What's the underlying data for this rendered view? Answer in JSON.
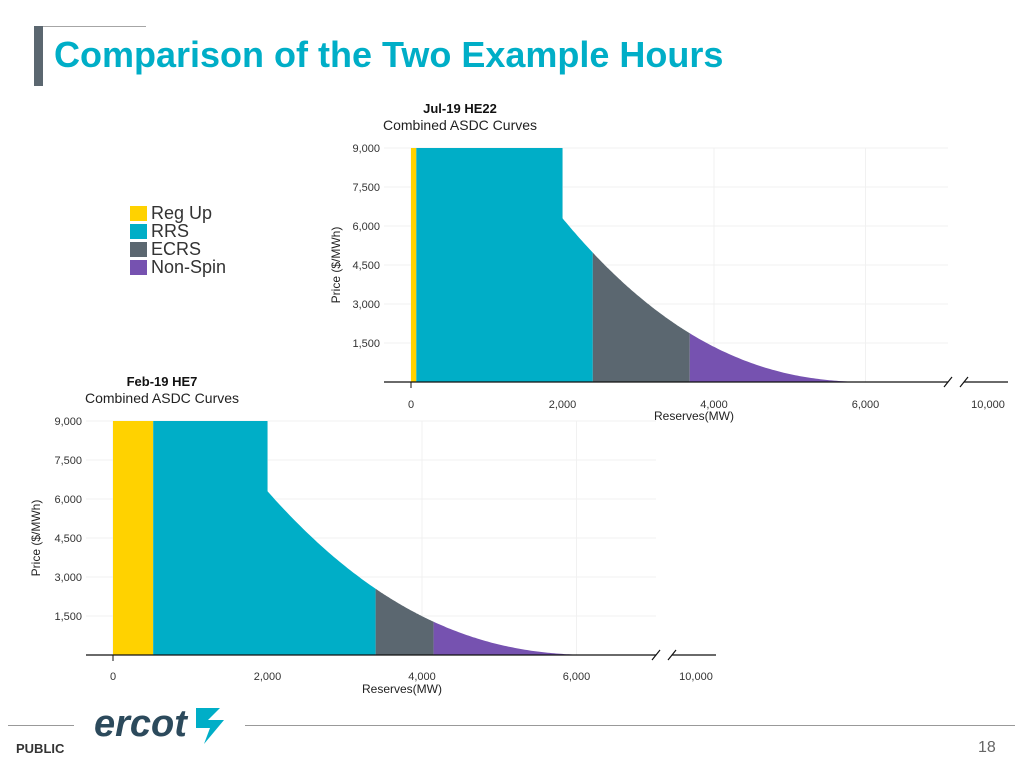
{
  "slide": {
    "title": "Comparison of the Two Example Hours",
    "footer_label": "PUBLIC",
    "page_number": "18",
    "logo_text": "ercot"
  },
  "legend": {
    "items": [
      {
        "label": "Reg Up",
        "color": "#ffd200"
      },
      {
        "label": "RRS",
        "color": "#00aec7"
      },
      {
        "label": "ECRS",
        "color": "#5b6770"
      },
      {
        "label": "Non-Spin",
        "color": "#7652b0"
      }
    ]
  },
  "chart_data": [
    {
      "type": "area",
      "title": "Jul-19 HE22",
      "subtitle": "Combined ASDC Curves",
      "xlabel": "Reserves(MW)",
      "ylabel": "Price ($/MWh)",
      "xlim": [
        0,
        7000
      ],
      "ylim": [
        0,
        9000
      ],
      "x_ticks": [
        "0",
        "2,000",
        "4,000",
        "6,000"
      ],
      "x_break_label": "10,000",
      "y_ticks": [
        "1,500",
        "3,000",
        "4,500",
        "6,000",
        "7,500",
        "9,000"
      ],
      "max_price": 9000,
      "curve": {
        "start_x": 2000,
        "start_y": 6300,
        "end_x": 6100
      },
      "series": [
        {
          "name": "Reg Up",
          "from": 0,
          "to": 70
        },
        {
          "name": "RRS",
          "from": 70,
          "to": 2400
        },
        {
          "name": "ECRS",
          "from": 2400,
          "to": 3680
        },
        {
          "name": "Non-Spin",
          "from": 3680,
          "to": 6100
        }
      ]
    },
    {
      "type": "area",
      "title": "Feb-19 HE7",
      "subtitle": "Combined ASDC Curves",
      "xlabel": "Reserves(MW)",
      "ylabel": "Price ($/MWh)",
      "xlim": [
        0,
        7000
      ],
      "ylim": [
        0,
        9000
      ],
      "x_ticks": [
        "0",
        "2,000",
        "4,000",
        "6,000"
      ],
      "x_break_label": "10,000",
      "y_ticks": [
        "1,500",
        "3,000",
        "4,500",
        "6,000",
        "7,500",
        "9,000"
      ],
      "max_price": 9000,
      "curve": {
        "start_x": 2000,
        "start_y": 6300,
        "end_x": 6300
      },
      "series": [
        {
          "name": "Reg Up",
          "from": 0,
          "to": 520
        },
        {
          "name": "RRS",
          "from": 520,
          "to": 3400
        },
        {
          "name": "ECRS",
          "from": 3400,
          "to": 4150
        },
        {
          "name": "Non-Spin",
          "from": 4150,
          "to": 6300
        }
      ]
    }
  ]
}
